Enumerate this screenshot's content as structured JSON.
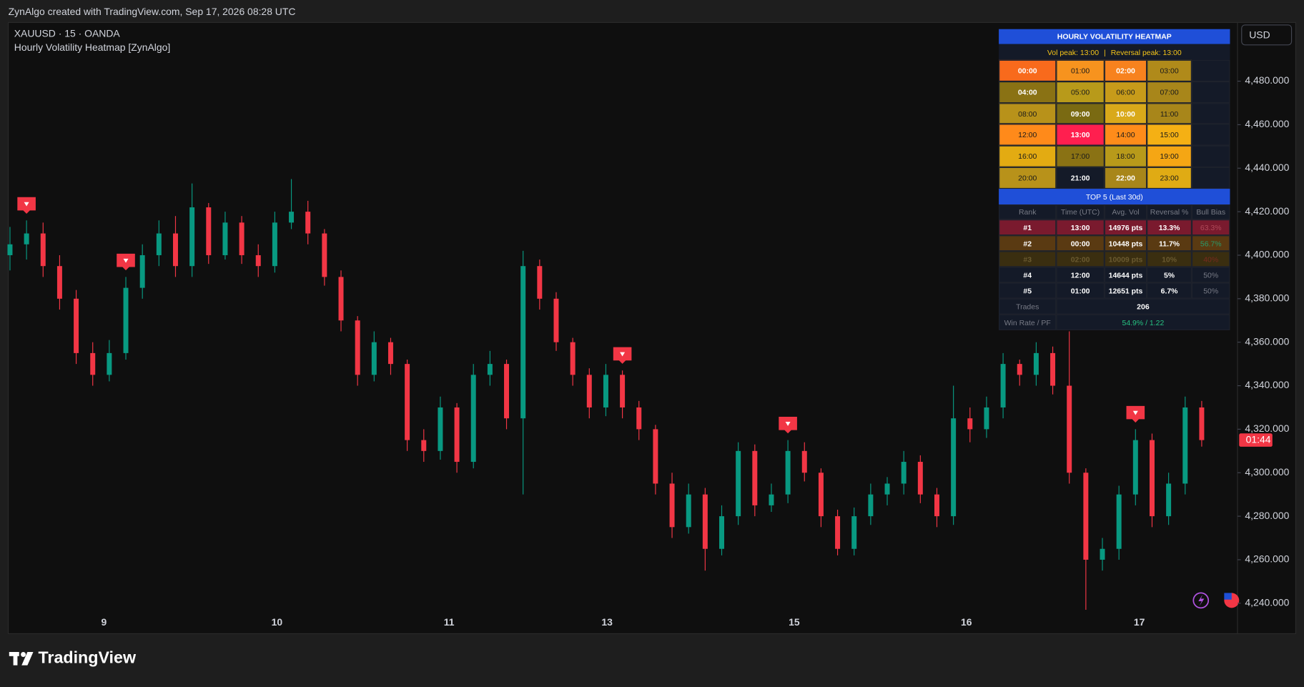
{
  "header": {
    "attribution": "ZynAlgo created with TradingView.com, Sep 17, 2026 08:28 UTC",
    "symbol": "XAUUSD · 15 · OANDA",
    "indicator": "Hourly Volatility Heatmap [ZynAlgo]",
    "currency": "USD"
  },
  "chart_data": {
    "type": "candlestick",
    "x_labels": [
      "9",
      "10",
      "11",
      "13",
      "15",
      "16",
      "17"
    ],
    "open": [
      4400,
      4405,
      4410,
      4395,
      4380,
      4355,
      4345,
      4355,
      4385,
      4400,
      4410,
      4395,
      4422,
      4400,
      4415,
      4400,
      4395,
      4415,
      4420,
      4410,
      4390,
      4370,
      4345,
      4360,
      4350,
      4315,
      4310,
      4330,
      4305,
      4345,
      4350,
      4325,
      4395,
      4380,
      4360,
      4345,
      4330,
      4345,
      4330,
      4320,
      4295,
      4275,
      4290,
      4265,
      4280,
      4310,
      4285,
      4290,
      4310,
      4300,
      4280,
      4265,
      4280,
      4290,
      4295,
      4305,
      4290,
      4280,
      4325,
      4320,
      4330,
      4350,
      4345,
      4355,
      4340,
      4300,
      4260,
      4265,
      4290,
      4315,
      4280,
      4295,
      4330
    ],
    "high": [
      4413,
      4416,
      4415,
      4400,
      4384,
      4360,
      4361,
      4390,
      4405,
      4416,
      4418,
      4433,
      4424,
      4420,
      4418,
      4405,
      4420,
      4435,
      4425,
      4412,
      4393,
      4372,
      4365,
      4362,
      4352,
      4320,
      4335,
      4332,
      4350,
      4356,
      4352,
      4402,
      4398,
      4383,
      4362,
      4348,
      4350,
      4347,
      4333,
      4322,
      4300,
      4295,
      4293,
      4285,
      4314,
      4313,
      4295,
      4315,
      4314,
      4302,
      4283,
      4284,
      4295,
      4298,
      4310,
      4308,
      4293,
      4340,
      4330,
      4335,
      4355,
      4352,
      4360,
      4358,
      4365,
      4302,
      4270,
      4294,
      4320,
      4318,
      4300,
      4335,
      4333
    ],
    "low": [
      4393,
      4398,
      4390,
      4375,
      4350,
      4340,
      4342,
      4352,
      4380,
      4395,
      4390,
      4390,
      4396,
      4398,
      4396,
      4390,
      4392,
      4412,
      4405,
      4386,
      4365,
      4340,
      4342,
      4345,
      4310,
      4305,
      4306,
      4300,
      4302,
      4340,
      4320,
      4290,
      4375,
      4356,
      4340,
      4325,
      4326,
      4325,
      4315,
      4290,
      4270,
      4272,
      4255,
      4262,
      4276,
      4280,
      4282,
      4286,
      4296,
      4275,
      4262,
      4262,
      4276,
      4285,
      4290,
      4286,
      4275,
      4276,
      4314,
      4316,
      4325,
      4340,
      4340,
      4336,
      4295,
      4237,
      4255,
      4260,
      4285,
      4275,
      4276,
      4290,
      4312
    ],
    "close": [
      4405,
      4410,
      4395,
      4380,
      4355,
      4345,
      4355,
      4385,
      4400,
      4410,
      4395,
      4422,
      4400,
      4415,
      4400,
      4395,
      4415,
      4420,
      4410,
      4390,
      4370,
      4345,
      4360,
      4350,
      4315,
      4310,
      4330,
      4305,
      4345,
      4350,
      4325,
      4395,
      4380,
      4360,
      4345,
      4330,
      4345,
      4330,
      4320,
      4295,
      4275,
      4290,
      4265,
      4280,
      4310,
      4285,
      4290,
      4310,
      4300,
      4280,
      4265,
      4280,
      4290,
      4295,
      4305,
      4290,
      4280,
      4325,
      4320,
      4330,
      4350,
      4345,
      4355,
      4340,
      4300,
      4260,
      4265,
      4290,
      4315,
      4280,
      4295,
      4330,
      4315
    ],
    "up_color": "#089981",
    "down_color": "#f23645",
    "grid": false,
    "ylim": [
      4226,
      4507
    ],
    "yticks": [
      {
        "value": 4240,
        "label": "4,240.000"
      },
      {
        "value": 4260,
        "label": "4,260.000"
      },
      {
        "value": 4280,
        "label": "4,280.000"
      },
      {
        "value": 4300,
        "label": "4,300.000"
      },
      {
        "value": 4320,
        "label": "4,320.000"
      },
      {
        "value": 4340,
        "label": "4,340.000"
      },
      {
        "value": 4360,
        "label": "4,360.000"
      },
      {
        "value": 4380,
        "label": "4,380.000"
      },
      {
        "value": 4400,
        "label": "4,400.000"
      },
      {
        "value": 4420,
        "label": "4,420.000"
      },
      {
        "value": 4440,
        "label": "4,440.000"
      },
      {
        "value": 4460,
        "label": "4,460.000"
      },
      {
        "value": 4480,
        "label": "4,480.000"
      }
    ],
    "countdown": "01:44"
  },
  "heatmap": {
    "title": "HOURLY VOLATILITY HEATMAP",
    "peak": [
      "Vol peak: 13:00",
      "|",
      "Reversal peak: 13:00"
    ],
    "cells": [
      [
        {
          "label": "00:00",
          "color": "#f86a1c",
          "text_color": "#ffffff"
        },
        {
          "label": "01:00",
          "color": "#f7931e",
          "text_color": "#1a1a1a"
        },
        {
          "label": "02:00",
          "color": "#f7821e",
          "text_color": "#ffffff"
        },
        {
          "label": "03:00",
          "color": "#b08a1a",
          "text_color": "#1a1a1a"
        }
      ],
      [
        {
          "label": "04:00",
          "color": "#8a7214",
          "text_color": "#ffffff"
        },
        {
          "label": "05:00",
          "color": "#b89a1a",
          "text_color": "#1a1a1a"
        },
        {
          "label": "06:00",
          "color": "#c79b1a",
          "text_color": "#1a1a1a"
        },
        {
          "label": "07:00",
          "color": "#a8861a",
          "text_color": "#1a1a1a"
        }
      ],
      [
        {
          "label": "08:00",
          "color": "#b8921a",
          "text_color": "#1a1a1a"
        },
        {
          "label": "09:00",
          "color": "#7a6a12",
          "text_color": "#ffffff"
        },
        {
          "label": "10:00",
          "color": "#d9a91a",
          "text_color": "#ffffff"
        },
        {
          "label": "11:00",
          "color": "#a8861a",
          "text_color": "#1a1a1a"
        }
      ],
      [
        {
          "label": "12:00",
          "color": "#ff8a1a",
          "text_color": "#1a1a1a"
        },
        {
          "label": "13:00",
          "color": "#ff1f4f",
          "text_color": "#ffffff"
        },
        {
          "label": "14:00",
          "color": "#ff8c1a",
          "text_color": "#1a1a1a"
        },
        {
          "label": "15:00",
          "color": "#f5b014",
          "text_color": "#1a1a1a"
        }
      ],
      [
        {
          "label": "16:00",
          "color": "#e3ab12",
          "text_color": "#1a1a1a"
        },
        {
          "label": "17:00",
          "color": "#8a7214",
          "text_color": "#1a1a1a"
        },
        {
          "label": "18:00",
          "color": "#b89a1a",
          "text_color": "#1a1a1a"
        },
        {
          "label": "19:00",
          "color": "#f5a614",
          "text_color": "#1a1a1a"
        }
      ],
      [
        {
          "label": "20:00",
          "color": "#b8921a",
          "text_color": "#1a1a1a"
        },
        {
          "label": "21:00",
          "color": "#141a28",
          "text_color": "#ffffff"
        },
        {
          "label": "22:00",
          "color": "#a8861a",
          "text_color": "#ffffff"
        },
        {
          "label": "23:00",
          "color": "#e0ab14",
          "text_color": "#1a1a1a"
        }
      ]
    ],
    "top_title": "TOP 5 (Last 30d)",
    "columns": [
      "Rank",
      "Time (UTC)",
      "Avg. Vol",
      "Reversal %",
      "Bull Bias"
    ],
    "rows": [
      {
        "cells": [
          "#1",
          "13:00",
          "14976 pts",
          "13.3%",
          "63.3%"
        ],
        "color": "#7a1a2e",
        "text_color": "#ffffff",
        "bias_color": "#b04a5a"
      },
      {
        "cells": [
          "#2",
          "00:00",
          "10448 pts",
          "11.7%",
          "56.7%"
        ],
        "color": "#5a3a12",
        "text_color": "#ffffff",
        "bias_color": "#2a9a6a"
      },
      {
        "cells": [
          "#3",
          "02:00",
          "10009 pts",
          "10%",
          "40%"
        ],
        "color": "#3a2e10",
        "text_color": "#6a5a30",
        "bias_color": "#7a2a20"
      },
      {
        "cells": [
          "#4",
          "12:00",
          "14644 pts",
          "5%",
          "50%"
        ],
        "color": "#141a28",
        "text_color": "#ffffff",
        "bias_color": "#787b86"
      },
      {
        "cells": [
          "#5",
          "01:00",
          "12651 pts",
          "6.7%",
          "50%"
        ],
        "color": "#141a28",
        "text_color": "#ffffff",
        "bias_color": "#787b86"
      }
    ],
    "trades_label": "Trades",
    "trades": "206",
    "winrate_label": "Win Rate / PF",
    "winrate": "54.9% / 1.22"
  },
  "footer": {
    "brand": "TradingView"
  }
}
